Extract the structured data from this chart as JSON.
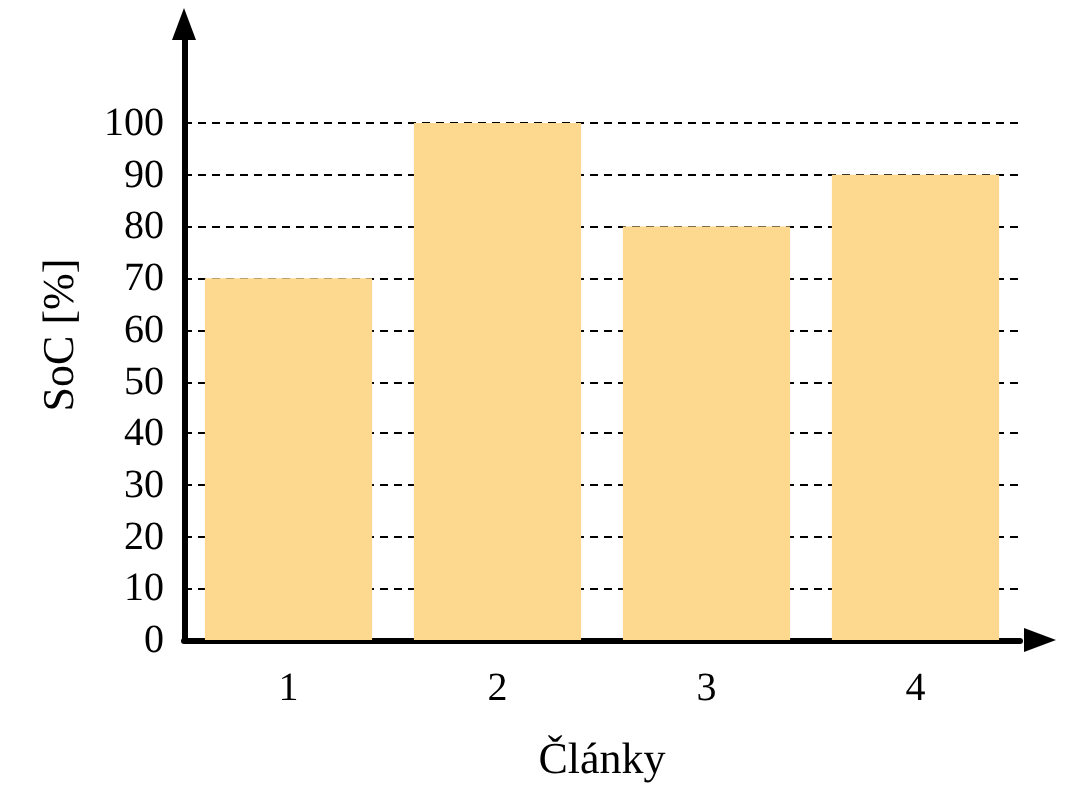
{
  "chart_data": {
    "type": "bar",
    "xlabel": "Články",
    "ylabel": "SoC [%]",
    "categories": [
      "1",
      "2",
      "3",
      "4"
    ],
    "values": [
      70,
      100,
      80,
      90
    ],
    "color": "#fdd88f",
    "ylim": [
      0,
      118
    ],
    "yticks": [
      0,
      10,
      20,
      30,
      40,
      50,
      60,
      70,
      80,
      90,
      100
    ],
    "grid": "y"
  }
}
